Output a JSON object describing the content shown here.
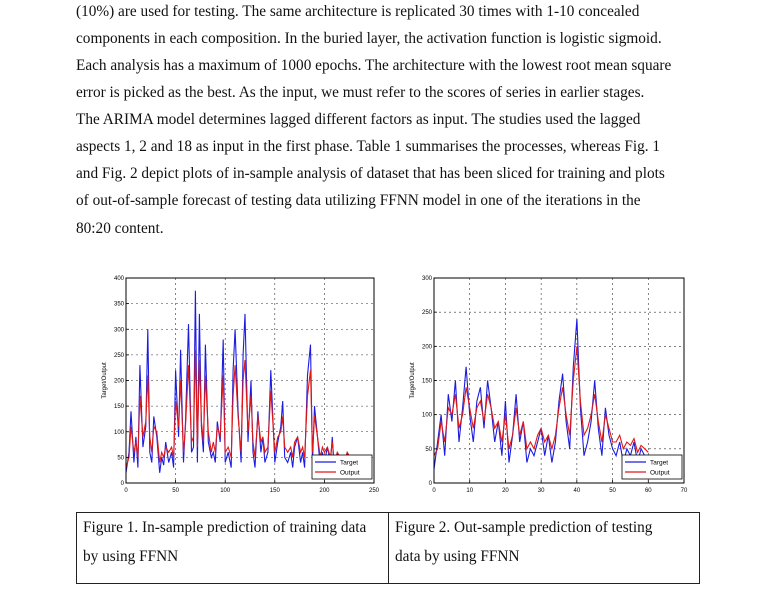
{
  "paragraph": {
    "lines": [
      "(10%) are used for testing. The same architecture is replicated 30 times with 1-10 concealed",
      "components in each composition. In the buried layer, the activation function is logistic sigmoid.",
      "Each analysis has a maximum of 1000 epochs. The architecture with the lowest root mean square",
      "error is picked as the best. As the input, we must refer to the scores of series in earlier stages.",
      "The ARIMA model determines lagged different factors as input. The studies used the lagged",
      "aspects 1, 2 and 18 as input in the first phase. Table 1 summarises the processes, whereas Fig. 1",
      "and Fig. 2 depict plots of in-sample analysis of dataset that has been sliced for training and plots",
      "of out-of-sample forecast of testing data utilizing FFNN model in one of the iterations in the",
      "80:20 content."
    ]
  },
  "captions": {
    "fig1": [
      "Figure 1. In-sample prediction of training data",
      "by using FFNN"
    ],
    "fig2": [
      "Figure 2. Out-sample prediction of testing",
      "data by using FFNN"
    ]
  },
  "chart_data": [
    {
      "type": "line",
      "title": "",
      "xlabel": "",
      "ylabel": "Target/Output",
      "xlim": [
        0,
        250
      ],
      "ylim": [
        0,
        400
      ],
      "xticks": [
        0,
        50,
        100,
        150,
        200,
        250
      ],
      "yticks": [
        0,
        50,
        100,
        150,
        200,
        250,
        300,
        350,
        400
      ],
      "xtick_labels": [
        "0",
        "50",
        "100",
        "150",
        "200",
        "250"
      ],
      "ytick_labels": [
        "0",
        "50",
        "100",
        "150",
        "200",
        "250",
        "300",
        "350",
        "400"
      ],
      "grid": true,
      "legend": "bottom-right",
      "series": [
        {
          "name": "Target",
          "color": "#1c1ce0",
          "x": [
            0,
            3,
            5,
            8,
            10,
            12,
            14,
            17,
            20,
            22,
            24,
            26,
            28,
            31,
            34,
            36,
            38,
            40,
            43,
            46,
            48,
            50,
            53,
            55,
            58,
            60,
            63,
            66,
            68,
            70,
            72,
            74,
            76,
            78,
            80,
            83,
            86,
            88,
            90,
            92,
            95,
            98,
            100,
            103,
            106,
            108,
            110,
            113,
            116,
            118,
            120,
            123,
            126,
            128,
            130,
            133,
            136,
            138,
            140,
            143,
            146,
            148,
            150,
            153,
            156,
            158,
            160,
            163,
            166,
            168,
            170,
            173,
            176,
            178,
            180,
            183,
            186,
            188,
            190,
            193,
            196,
            198,
            200,
            203,
            206,
            208,
            210,
            213,
            216,
            218,
            220,
            223,
            226,
            228,
            230
          ],
          "y": [
            20,
            60,
            140,
            40,
            90,
            30,
            230,
            70,
            110,
            300,
            60,
            40,
            130,
            90,
            20,
            50,
            35,
            80,
            40,
            60,
            30,
            220,
            90,
            260,
            40,
            120,
            310,
            60,
            70,
            375,
            40,
            330,
            110,
            60,
            270,
            80,
            50,
            60,
            40,
            120,
            80,
            280,
            40,
            60,
            30,
            220,
            300,
            140,
            40,
            250,
            330,
            80,
            200,
            60,
            30,
            140,
            60,
            90,
            40,
            60,
            220,
            130,
            40,
            80,
            110,
            160,
            50,
            40,
            60,
            30,
            70,
            90,
            40,
            60,
            30,
            210,
            270,
            40,
            150,
            90,
            30,
            60,
            40,
            70,
            40,
            90,
            20,
            60,
            30,
            40,
            30,
            60,
            40,
            30,
            20
          ]
        },
        {
          "name": "Output",
          "color": "#e01818",
          "x": [
            0,
            3,
            5,
            8,
            10,
            12,
            14,
            17,
            20,
            22,
            24,
            26,
            28,
            31,
            34,
            36,
            38,
            40,
            43,
            46,
            48,
            50,
            53,
            55,
            58,
            60,
            63,
            66,
            68,
            70,
            72,
            74,
            76,
            78,
            80,
            83,
            86,
            88,
            90,
            92,
            95,
            98,
            100,
            103,
            106,
            108,
            110,
            113,
            116,
            118,
            120,
            123,
            126,
            128,
            130,
            133,
            136,
            138,
            140,
            143,
            146,
            148,
            150,
            153,
            156,
            158,
            160,
            163,
            166,
            168,
            170,
            173,
            176,
            178,
            180,
            183,
            186,
            188,
            190,
            193,
            196,
            198,
            200,
            203,
            206,
            208,
            210,
            213,
            216,
            218,
            220,
            223,
            226,
            228,
            230
          ],
          "y": [
            30,
            50,
            110,
            60,
            80,
            50,
            170,
            90,
            120,
            210,
            90,
            60,
            110,
            100,
            40,
            60,
            50,
            70,
            60,
            70,
            50,
            160,
            110,
            200,
            60,
            110,
            230,
            80,
            90,
            260,
            70,
            240,
            120,
            80,
            210,
            100,
            60,
            80,
            60,
            110,
            90,
            210,
            60,
            70,
            50,
            170,
            230,
            130,
            60,
            200,
            240,
            100,
            170,
            80,
            50,
            130,
            80,
            90,
            60,
            70,
            180,
            120,
            60,
            90,
            100,
            130,
            70,
            60,
            70,
            50,
            80,
            90,
            60,
            70,
            50,
            170,
            220,
            60,
            130,
            90,
            50,
            70,
            60,
            70,
            50,
            80,
            40,
            60,
            50,
            50,
            40,
            60,
            50,
            40,
            40
          ]
        }
      ]
    },
    {
      "type": "line",
      "title": "",
      "xlabel": "",
      "ylabel": "Target/Output",
      "xlim": [
        0,
        70
      ],
      "ylim": [
        0,
        300
      ],
      "xticks": [
        0,
        10,
        20,
        30,
        40,
        50,
        60,
        70
      ],
      "yticks": [
        0,
        50,
        100,
        150,
        200,
        250,
        300
      ],
      "xtick_labels": [
        "0",
        "10",
        "20",
        "30",
        "40",
        "50",
        "60",
        "70"
      ],
      "ytick_labels": [
        "0",
        "50",
        "100",
        "150",
        "200",
        "250",
        "300"
      ],
      "grid": true,
      "legend": "bottom-right",
      "series": [
        {
          "name": "Target",
          "color": "#1c1ce0",
          "x": [
            0,
            1,
            2,
            3,
            4,
            5,
            6,
            7,
            8,
            9,
            10,
            11,
            12,
            13,
            14,
            15,
            16,
            17,
            18,
            19,
            20,
            21,
            22,
            23,
            24,
            25,
            26,
            27,
            28,
            29,
            30,
            31,
            32,
            33,
            34,
            35,
            36,
            37,
            38,
            39,
            40,
            41,
            42,
            43,
            44,
            45,
            46,
            47,
            48,
            49,
            50,
            51,
            52,
            53,
            54,
            55,
            56,
            57,
            58,
            59,
            60
          ],
          "y": [
            20,
            60,
            100,
            40,
            130,
            90,
            150,
            60,
            110,
            170,
            100,
            60,
            120,
            140,
            80,
            150,
            110,
            60,
            90,
            40,
            120,
            30,
            70,
            130,
            60,
            90,
            30,
            50,
            40,
            60,
            80,
            40,
            70,
            30,
            60,
            120,
            160,
            90,
            50,
            170,
            240,
            110,
            40,
            60,
            90,
            150,
            80,
            40,
            110,
            70,
            50,
            40,
            60,
            30,
            50,
            40,
            60,
            30,
            50,
            40,
            35
          ]
        },
        {
          "name": "Output",
          "color": "#e01818",
          "x": [
            0,
            1,
            2,
            3,
            4,
            5,
            6,
            7,
            8,
            9,
            10,
            11,
            12,
            13,
            14,
            15,
            16,
            17,
            18,
            19,
            20,
            21,
            22,
            23,
            24,
            25,
            26,
            27,
            28,
            29,
            30,
            31,
            32,
            33,
            34,
            35,
            36,
            37,
            38,
            39,
            40,
            41,
            42,
            43,
            44,
            45,
            46,
            47,
            48,
            49,
            50,
            51,
            52,
            53,
            54,
            55,
            56,
            57,
            58,
            59,
            60
          ],
          "y": [
            40,
            50,
            90,
            60,
            110,
            100,
            130,
            80,
            100,
            140,
            110,
            80,
            110,
            120,
            90,
            130,
            110,
            80,
            90,
            60,
            100,
            50,
            70,
            110,
            70,
            90,
            50,
            60,
            50,
            70,
            80,
            60,
            70,
            50,
            70,
            110,
            140,
            100,
            70,
            150,
            200,
            120,
            70,
            80,
            100,
            130,
            90,
            60,
            100,
            80,
            60,
            60,
            70,
            50,
            60,
            55,
            65,
            45,
            55,
            50,
            45
          ]
        }
      ]
    }
  ]
}
